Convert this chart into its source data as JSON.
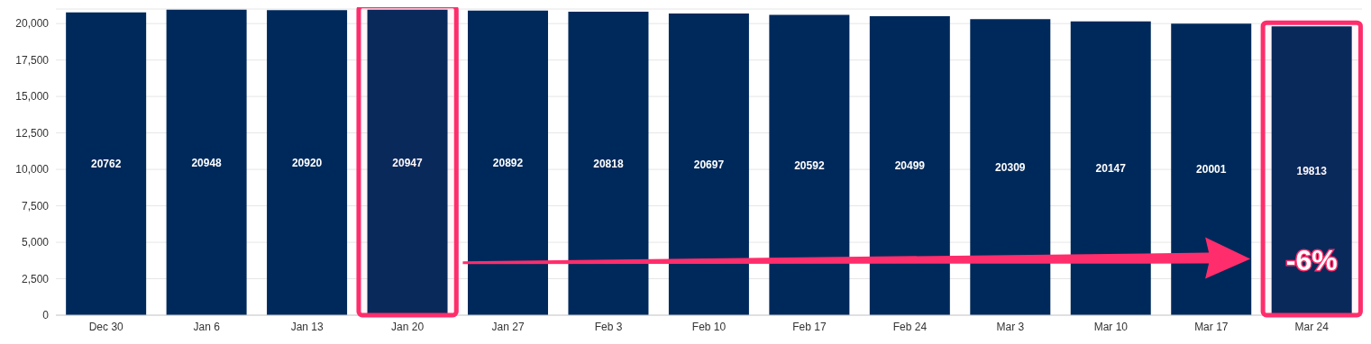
{
  "chart_data": {
    "type": "bar",
    "categories": [
      "Dec 30",
      "Jan 6",
      "Jan 13",
      "Jan 20",
      "Jan 27",
      "Feb 3",
      "Feb 10",
      "Feb 17",
      "Feb 24",
      "Mar 3",
      "Mar 10",
      "Mar 17",
      "Mar 24"
    ],
    "values": [
      20762,
      20948,
      20920,
      20947,
      20892,
      20818,
      20697,
      20592,
      20499,
      20309,
      20147,
      20001,
      19813
    ],
    "color": "#00295b",
    "data_labels": true,
    "ylim": [
      0,
      21000
    ],
    "yticks": [
      0,
      {
        "value": 2500,
        "label": "2,500"
      },
      {
        "value": 5000,
        "label": "5,000"
      },
      {
        "value": 7500,
        "label": "7,500"
      },
      {
        "value": 10000,
        "label": "10,000"
      },
      {
        "value": 12500,
        "label": "12,500"
      },
      {
        "value": 15000,
        "label": "15,000"
      },
      {
        "value": 17500,
        "label": "17,500"
      },
      {
        "value": 20000,
        "label": "20,000"
      }
    ],
    "grid": "y",
    "bands": [
      {
        "axis": "x",
        "from": "Jan 20",
        "to": "Jan 20",
        "color": "#ff2d6b"
      },
      {
        "axis": "x",
        "from": "Mar 24",
        "to": "Mar 24",
        "color": "#ff2d6b"
      }
    ],
    "annotations": [
      "-6%"
    ]
  }
}
